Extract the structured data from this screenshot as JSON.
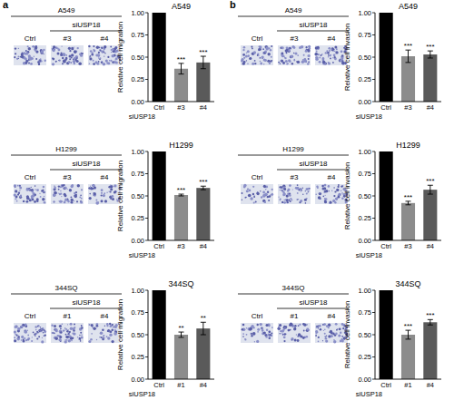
{
  "panel_labels": [
    "a",
    "b"
  ],
  "chart_data": [
    {
      "type": "bar",
      "title": "A549",
      "categories": [
        "Ctrl",
        "#3",
        "#4"
      ],
      "xlabel": "siUSP18",
      "ylabel": "Relative cell migration",
      "values": [
        1,
        0.37,
        0.44
      ],
      "errors": [
        0,
        0.06,
        0.07
      ],
      "significance": [
        null,
        "***",
        "***"
      ],
      "colors": [
        "#000000",
        "#8c8c8c",
        "#5a5a5a"
      ],
      "ylim": [
        0,
        1
      ],
      "yticks": [
        {
          "value": 0,
          "label": "0.00"
        },
        {
          "value": 0.25,
          "label": "0.25"
        },
        {
          "value": 0.5,
          "label": "0.50"
        },
        {
          "value": 0.75,
          "label": "0.75"
        },
        {
          "value": 1,
          "label": "1.00"
        }
      ]
    },
    {
      "type": "bar",
      "title": "H1299",
      "categories": [
        "Ctrl",
        "#3",
        "#4"
      ],
      "xlabel": "siUSP18",
      "ylabel": "Relative cell migration",
      "values": [
        1,
        0.51,
        0.59
      ],
      "errors": [
        0,
        0.01,
        0.02
      ],
      "significance": [
        null,
        "***",
        "***"
      ],
      "colors": [
        "#000000",
        "#8c8c8c",
        "#5a5a5a"
      ],
      "ylim": [
        0,
        1
      ],
      "yticks": [
        {
          "value": 0,
          "label": "0.00"
        },
        {
          "value": 0.25,
          "label": "0.25"
        },
        {
          "value": 0.5,
          "label": "0.50"
        },
        {
          "value": 0.75,
          "label": "0.75"
        },
        {
          "value": 1,
          "label": "1.00"
        }
      ]
    },
    {
      "type": "bar",
      "title": "344SQ",
      "categories": [
        "Ctrl",
        "#1",
        "#4"
      ],
      "xlabel": "siUSP18",
      "ylabel": "Relative cell migration",
      "values": [
        1,
        0.5,
        0.57
      ],
      "errors": [
        0,
        0.03,
        0.07
      ],
      "significance": [
        null,
        "**",
        "**"
      ],
      "colors": [
        "#000000",
        "#8c8c8c",
        "#5a5a5a"
      ],
      "ylim": [
        0,
        1
      ],
      "yticks": [
        {
          "value": 0,
          "label": "0.00"
        },
        {
          "value": 0.25,
          "label": "0.25"
        },
        {
          "value": 0.5,
          "label": "0.50"
        },
        {
          "value": 0.75,
          "label": "0.75"
        },
        {
          "value": 1,
          "label": "1.00"
        }
      ]
    },
    {
      "type": "bar",
      "title": "A549",
      "categories": [
        "Ctrl",
        "#3",
        "#4"
      ],
      "xlabel": "siUSP18",
      "ylabel": "Relative cell invasion",
      "values": [
        1,
        0.51,
        0.53
      ],
      "errors": [
        0,
        0.07,
        0.04
      ],
      "significance": [
        null,
        "***",
        "***"
      ],
      "colors": [
        "#000000",
        "#8c8c8c",
        "#5a5a5a"
      ],
      "ylim": [
        0,
        1
      ],
      "yticks": [
        {
          "value": 0,
          "label": "0.00"
        },
        {
          "value": 0.25,
          "label": "0.25"
        },
        {
          "value": 0.5,
          "label": "0.50"
        },
        {
          "value": 0.75,
          "label": "0.75"
        },
        {
          "value": 1,
          "label": "1.00"
        }
      ]
    },
    {
      "type": "bar",
      "title": "H1299",
      "categories": [
        "Ctrl",
        "#3",
        "#4"
      ],
      "xlabel": "siUSP18",
      "ylabel": "Relative cell invasion",
      "values": [
        1,
        0.42,
        0.57
      ],
      "errors": [
        0,
        0.02,
        0.05
      ],
      "significance": [
        null,
        "***",
        "***"
      ],
      "colors": [
        "#000000",
        "#8c8c8c",
        "#5a5a5a"
      ],
      "ylim": [
        0,
        1
      ],
      "yticks": [
        {
          "value": 0,
          "label": "0.00"
        },
        {
          "value": 0.25,
          "label": "0.25"
        },
        {
          "value": 0.5,
          "label": "0.50"
        },
        {
          "value": 0.75,
          "label": "0.75"
        },
        {
          "value": 1,
          "label": "1.00"
        }
      ]
    },
    {
      "type": "bar",
      "title": "344SQ",
      "categories": [
        "Ctrl",
        "#1",
        "#4"
      ],
      "xlabel": "siUSP18",
      "ylabel": "Relative cell invasion",
      "values": [
        1,
        0.5,
        0.64
      ],
      "errors": [
        0,
        0.05,
        0.03
      ],
      "significance": [
        null,
        "***",
        "***"
      ],
      "colors": [
        "#000000",
        "#8c8c8c",
        "#5a5a5a"
      ],
      "ylim": [
        0,
        1
      ],
      "yticks": [
        {
          "value": 0,
          "label": "0.00"
        },
        {
          "value": 0.25,
          "label": "0.25"
        },
        {
          "value": 0.5,
          "label": "0.50"
        },
        {
          "value": 0.75,
          "label": "0.75"
        },
        {
          "value": 1,
          "label": "1.00"
        }
      ]
    }
  ]
}
